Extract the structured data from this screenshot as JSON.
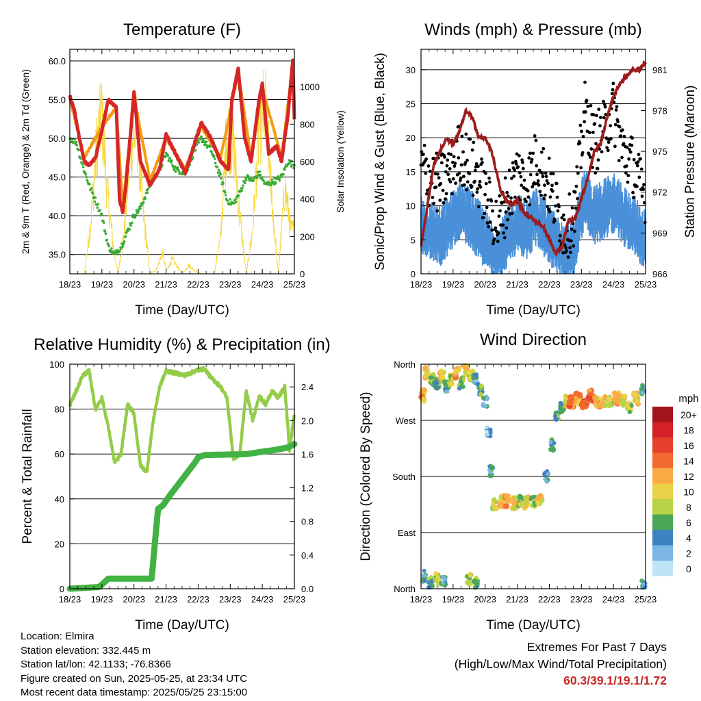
{
  "chart_data": [
    {
      "type": "line",
      "title": "Temperature (F)",
      "xlabel": "Time (Day/UTC)",
      "ylabel": "2m & 9m T (Red, Orange) & 2m Td (Green)",
      "ylabel_right": "Solar Insolation (Yellow)",
      "x_ticks": [
        "18/23",
        "19/23",
        "20/23",
        "21/23",
        "22/23",
        "23/23",
        "24/23",
        "25/23"
      ],
      "y_ticks": [
        "35.0",
        "40.0",
        "45.0",
        "50.0",
        "55.0",
        "60.0"
      ],
      "y2_ticks": [
        "0",
        "200",
        "400",
        "600",
        "800",
        "1000"
      ],
      "ylim": [
        32.5,
        61.5
      ],
      "y2lim": [
        0,
        1200
      ],
      "x_unit": "days since 18/23 UTC",
      "series": [
        {
          "name": "2m T",
          "color": "#d62728",
          "x": [
            0,
            0.15,
            0.3,
            0.45,
            0.6,
            0.8,
            1.0,
            1.2,
            1.45,
            1.55,
            1.65,
            1.75,
            1.9,
            2.0,
            2.2,
            2.5,
            2.8,
            3.0,
            3.3,
            3.6,
            3.9,
            4.1,
            4.4,
            4.7,
            4.95,
            5.05,
            5.25,
            5.45,
            5.65,
            5.9,
            6.0,
            6.2,
            6.45,
            6.6,
            6.8,
            6.95,
            7.0
          ],
          "y": [
            55.5,
            53.5,
            50.0,
            47.0,
            46.5,
            47.5,
            51.0,
            55.0,
            54.0,
            42.0,
            40.5,
            44.0,
            51.0,
            56.0,
            47.0,
            44.0,
            46.0,
            50.5,
            48.0,
            45.5,
            49.5,
            52.0,
            50.0,
            47.0,
            46.0,
            55.0,
            59.0,
            50.0,
            47.0,
            55.0,
            57.0,
            48.0,
            49.0,
            47.0,
            53.0,
            60.0,
            52.5
          ]
        },
        {
          "name": "9m T",
          "color": "#f39c12",
          "x": [
            0,
            0.45,
            1.0,
            1.45,
            1.65,
            2.0,
            2.5,
            3.0,
            3.6,
            4.1,
            4.7,
            5.25,
            5.65,
            6.0,
            6.6,
            6.95,
            7.0
          ],
          "y": [
            55.2,
            47.5,
            51.5,
            54.0,
            41.0,
            55.5,
            44.5,
            50.0,
            46.0,
            51.5,
            47.5,
            58.5,
            47.5,
            56.5,
            47.5,
            59.5,
            52.5
          ]
        },
        {
          "name": "2m Td",
          "color": "#3cab35",
          "x": [
            0,
            0.2,
            0.4,
            0.6,
            0.8,
            1.0,
            1.2,
            1.4,
            1.6,
            1.8,
            2.0,
            2.2,
            2.5,
            2.8,
            3.0,
            3.3,
            3.6,
            3.9,
            4.1,
            4.4,
            4.7,
            4.9,
            5.1,
            5.3,
            5.5,
            5.7,
            5.9,
            6.1,
            6.4,
            6.6,
            6.8,
            7.0
          ],
          "y": [
            50.0,
            49.5,
            46.5,
            44.0,
            42.0,
            40.0,
            36.0,
            35.0,
            36.0,
            38.0,
            40.0,
            41.0,
            44.0,
            46.0,
            48.0,
            46.0,
            45.5,
            48.5,
            50.0,
            48.5,
            45.0,
            42.0,
            41.5,
            43.0,
            45.0,
            44.5,
            45.5,
            44.0,
            44.5,
            45.0,
            47.0,
            46.5
          ]
        },
        {
          "name": "Solar Insolation",
          "color": "#f7d842",
          "axis": "right",
          "x": [
            0.45,
            0.65,
            0.85,
            1.0,
            1.15,
            1.35,
            1.5,
            1.7,
            1.9,
            2.1,
            2.3,
            2.5,
            2.7,
            2.9,
            3.0,
            3.2,
            3.5,
            3.7,
            3.9,
            4.1,
            4.5,
            4.7,
            4.9,
            5.1,
            5.3,
            5.5,
            5.7,
            5.9,
            6.1,
            6.3,
            6.5,
            6.7,
            6.9
          ],
          "y": [
            0,
            350,
            900,
            1100,
            600,
            200,
            0,
            300,
            900,
            1000,
            400,
            0,
            30,
            150,
            20,
            100,
            0,
            60,
            20,
            0,
            0,
            250,
            1000,
            900,
            400,
            0,
            300,
            1000,
            1150,
            500,
            0,
            600,
            300
          ]
        }
      ]
    },
    {
      "type": "scatter",
      "title": "Winds (mph) & Pressure (mb)",
      "xlabel": "Time (Day/UTC)",
      "ylabel": "Sonic/Prop Wind & Gust (Blue, Black)",
      "ylabel_right": "Station Pressure (Maroon)",
      "x_ticks": [
        "18/23",
        "19/23",
        "20/23",
        "21/23",
        "22/23",
        "23/23",
        "24/23",
        "25/23"
      ],
      "y_ticks": [
        "0",
        "5",
        "10",
        "15",
        "20",
        "25",
        "30"
      ],
      "y2_ticks": [
        "966",
        "969",
        "972",
        "975",
        "978",
        "981"
      ],
      "ylim": [
        0,
        33
      ],
      "y2lim": [
        966,
        982.5
      ],
      "series": [
        {
          "name": "Wind",
          "color": "#4a90d9",
          "x": [
            0,
            0.3,
            0.6,
            0.9,
            1.2,
            1.5,
            1.8,
            2.1,
            2.4,
            2.7,
            3.0,
            3.3,
            3.6,
            3.9,
            4.2,
            4.5,
            4.8,
            5.1,
            5.4,
            5.7,
            6.0,
            6.3,
            6.6,
            6.9
          ],
          "y": [
            8,
            7,
            6,
            8,
            10,
            9,
            7,
            5,
            3,
            6,
            8,
            7,
            9,
            7,
            5,
            3,
            5,
            12,
            9,
            10,
            11,
            9,
            8,
            6
          ]
        },
        {
          "name": "Gust",
          "color": "#000000",
          "x": [
            0,
            0.3,
            0.6,
            0.9,
            1.2,
            1.5,
            1.8,
            2.1,
            2.4,
            2.7,
            3.0,
            3.3,
            3.6,
            3.9,
            4.2,
            4.5,
            4.8,
            5.1,
            5.4,
            5.7,
            6.0,
            6.3,
            6.6,
            6.9
          ],
          "y": [
            16,
            14,
            13,
            15,
            18,
            16,
            14,
            10,
            7,
            11,
            15,
            13,
            17,
            14,
            10,
            6,
            9,
            24,
            19,
            21,
            24,
            18,
            16,
            12
          ]
        },
        {
          "name": "Pressure",
          "color": "#9b1c1c",
          "axis": "right",
          "x": [
            0,
            0.2,
            0.4,
            0.6,
            0.8,
            1.0,
            1.2,
            1.4,
            1.6,
            1.8,
            2.0,
            2.2,
            2.5,
            2.8,
            3.0,
            3.2,
            3.5,
            3.8,
            4.0,
            4.2,
            4.4,
            4.6,
            4.8,
            5.0,
            5.2,
            5.4,
            5.6,
            5.8,
            6.0,
            6.2,
            6.4,
            6.6,
            6.8,
            7.0
          ],
          "y": [
            968,
            971,
            974,
            975,
            976,
            975.5,
            976.5,
            978,
            977.5,
            976,
            976,
            975,
            972,
            971,
            971.5,
            970.5,
            970,
            969.5,
            968.5,
            967.5,
            968,
            970,
            970,
            971.5,
            973,
            975,
            975.5,
            977.5,
            979,
            980,
            980.5,
            981,
            981,
            981.5
          ]
        }
      ]
    },
    {
      "type": "line",
      "title": "Relative Humidity (%) & Precipitation (in)",
      "xlabel": "Time (Day/UTC)",
      "ylabel": "Percent & Total Rainfall",
      "x_ticks": [
        "18/23",
        "19/23",
        "20/23",
        "21/23",
        "22/23",
        "23/23",
        "24/23",
        "25/23"
      ],
      "y_ticks": [
        "0",
        "20",
        "40",
        "60",
        "80",
        "100"
      ],
      "y2_ticks": [
        "0.0",
        "0.4",
        "0.8",
        "1.2",
        "1.6",
        "2.0",
        "2.4"
      ],
      "ylim": [
        0,
        100
      ],
      "y2lim": [
        0,
        2.67
      ],
      "series": [
        {
          "name": "Relative Humidity",
          "color": "#94cc4a",
          "x": [
            0,
            0.2,
            0.4,
            0.6,
            0.8,
            1.0,
            1.2,
            1.4,
            1.6,
            1.8,
            2.0,
            2.2,
            2.4,
            2.6,
            2.8,
            3.0,
            3.3,
            3.6,
            3.9,
            4.2,
            4.4,
            4.7,
            4.9,
            5.1,
            5.3,
            5.5,
            5.7,
            5.9,
            6.1,
            6.3,
            6.5,
            6.7,
            6.85,
            7.0
          ],
          "y": [
            82,
            88,
            95,
            97,
            80,
            85,
            72,
            56,
            60,
            82,
            78,
            55,
            52,
            75,
            90,
            97,
            96,
            95,
            97,
            98,
            94,
            90,
            85,
            58,
            60,
            88,
            75,
            86,
            82,
            88,
            85,
            90,
            62,
            78
          ]
        },
        {
          "name": "Total Precipitation",
          "color": "#43b244",
          "axis": "right",
          "x": [
            0,
            0.9,
            1.0,
            1.2,
            2.0,
            2.55,
            2.75,
            2.9,
            3.1,
            3.3,
            3.5,
            3.7,
            3.9,
            4.0,
            4.2,
            5.5,
            6.0,
            6.4,
            6.8,
            7.0
          ],
          "y": [
            0.0,
            0.02,
            0.05,
            0.12,
            0.12,
            0.12,
            0.95,
            0.99,
            1.1,
            1.2,
            1.3,
            1.4,
            1.5,
            1.56,
            1.59,
            1.6,
            1.63,
            1.65,
            1.68,
            1.72
          ]
        }
      ]
    },
    {
      "type": "scatter",
      "title": "Wind Direction",
      "xlabel": "Time (Day/UTC)",
      "ylabel": "Direction (Colored By Speed)",
      "x_ticks": [
        "18/23",
        "19/23",
        "20/23",
        "21/23",
        "22/23",
        "23/23",
        "24/23",
        "25/23"
      ],
      "y_ticks": [
        "North",
        "East",
        "South",
        "West",
        "North"
      ],
      "ylim": [
        0,
        360
      ],
      "legend": {
        "title": "mph",
        "labels": [
          "20+",
          "18",
          "16",
          "14",
          "12",
          "10",
          "8",
          "6",
          "4",
          "2",
          "0"
        ],
        "colors": [
          "#a3131c",
          "#d42127",
          "#e6402d",
          "#f26a2f",
          "#fbab46",
          "#e8d248",
          "#b6d445",
          "#4ba658",
          "#3e82c1",
          "#7cb7e4",
          "#bde4f7"
        ],
        "placement": "right"
      },
      "series": [
        {
          "name": "Direction",
          "x": [
            0.05,
            0.2,
            0.35,
            0.5,
            0.65,
            0.8,
            0.95,
            1.1,
            1.25,
            1.4,
            1.55,
            1.7,
            1.85,
            2.0,
            2.1,
            2.2,
            2.3,
            2.5,
            2.7,
            2.9,
            3.1,
            3.3,
            3.5,
            3.7,
            3.9,
            4.1,
            4.25,
            4.4,
            4.55,
            4.7,
            4.9,
            5.1,
            5.3,
            5.5,
            5.7,
            5.9,
            6.1,
            6.3,
            6.5,
            6.7,
            6.9,
            0.1,
            0.3,
            0.5,
            0.7,
            1.5,
            1.7,
            6.95
          ],
          "y": [
            310,
            345,
            335,
            330,
            340,
            325,
            335,
            345,
            330,
            350,
            340,
            335,
            320,
            300,
            250,
            190,
            135,
            140,
            140,
            137,
            140,
            138,
            140,
            142,
            180,
            230,
            275,
            290,
            300,
            300,
            305,
            295,
            310,
            300,
            300,
            300,
            305,
            300,
            290,
            305,
            320,
            20,
            10,
            15,
            12,
            15,
            10,
            5
          ],
          "speeds": [
            12,
            10,
            8,
            6,
            10,
            4,
            8,
            12,
            6,
            10,
            8,
            4,
            6,
            4,
            2,
            4,
            8,
            10,
            12,
            10,
            8,
            10,
            8,
            10,
            4,
            4,
            6,
            6,
            10,
            14,
            12,
            16,
            14,
            12,
            10,
            8,
            12,
            10,
            8,
            10,
            4,
            4,
            6,
            8,
            4,
            8,
            6,
            4
          ]
        }
      ]
    }
  ],
  "info": {
    "location": "Location: Elmira",
    "elevation": "Station elevation: 332.445 m",
    "latlon": "Station lat/lon: 42.1133; -76.8366",
    "created": "Figure created on Sun, 2025-05-25, at 23:34 UTC",
    "recent": "Most recent data timestamp: 2025/05/25 23:15:00"
  },
  "extremes": {
    "title": "Extremes For Past 7 Days",
    "subtitle": "(High/Low/Max Wind/Total Precipitation)",
    "values": "60.3/39.1/19.1/1.72"
  }
}
